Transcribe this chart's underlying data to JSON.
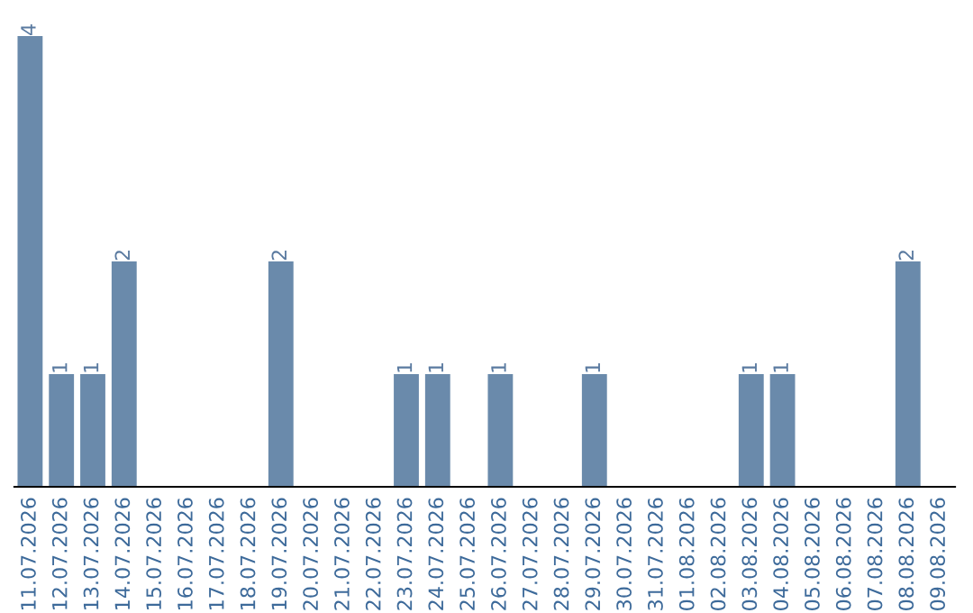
{
  "chart_data": {
    "type": "bar",
    "categories": [
      "11.07.2026",
      "12.07.2026",
      "13.07.2026",
      "14.07.2026",
      "15.07.2026",
      "16.07.2026",
      "17.07.2026",
      "18.07.2026",
      "19.07.2026",
      "20.07.2026",
      "21.07.2026",
      "22.07.2026",
      "23.07.2026",
      "24.07.2026",
      "25.07.2026",
      "26.07.2026",
      "27.07.2026",
      "28.07.2026",
      "29.07.2026",
      "30.07.2026",
      "31.07.2026",
      "01.08.2026",
      "02.08.2026",
      "03.08.2026",
      "04.08.2026",
      "05.08.2026",
      "06.08.2026",
      "07.08.2026",
      "08.08.2026",
      "09.08.2026"
    ],
    "values": [
      4,
      1,
      1,
      2,
      0,
      0,
      0,
      0,
      2,
      0,
      0,
      0,
      1,
      1,
      0,
      1,
      0,
      0,
      1,
      0,
      0,
      0,
      0,
      1,
      1,
      0,
      0,
      0,
      2,
      0
    ],
    "value_labels": [
      "4",
      "1",
      "1",
      "2",
      null,
      null,
      null,
      null,
      "2",
      null,
      null,
      null,
      "1",
      "1",
      null,
      "1",
      null,
      null,
      "1",
      null,
      null,
      null,
      null,
      "1",
      "1",
      null,
      null,
      null,
      "2",
      null
    ],
    "color": "#6a8aab",
    "tick_labels": "x",
    "grid": false,
    "legend": false
  }
}
